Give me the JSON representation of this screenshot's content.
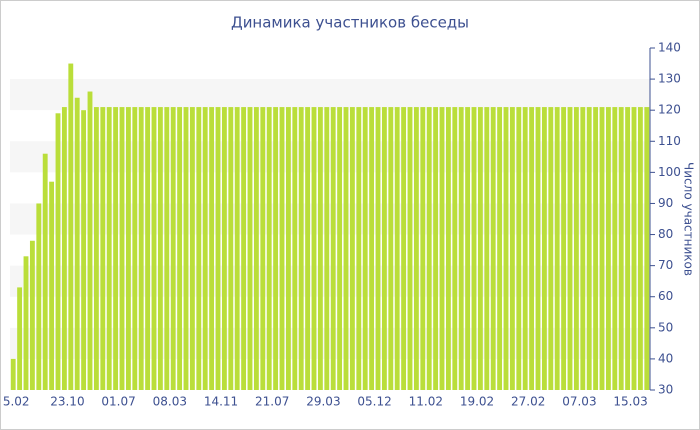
{
  "chart_data": {
    "type": "bar",
    "title": "Динамика участников беседы",
    "y_axis_label": "Число участников",
    "categories": [
      "5.02",
      null,
      null,
      null,
      null,
      null,
      null,
      null,
      "23.10",
      null,
      null,
      null,
      null,
      null,
      null,
      null,
      "01.07",
      null,
      null,
      null,
      null,
      null,
      null,
      null,
      "08.03",
      null,
      null,
      null,
      null,
      null,
      null,
      null,
      "14.11",
      null,
      null,
      null,
      null,
      null,
      null,
      null,
      "21.07",
      null,
      null,
      null,
      null,
      null,
      null,
      null,
      "29.03",
      null,
      null,
      null,
      null,
      null,
      null,
      null,
      "05.12",
      null,
      null,
      null,
      null,
      null,
      null,
      null,
      "11.02",
      null,
      null,
      null,
      null,
      null,
      null,
      null,
      "19.02",
      null,
      null,
      null,
      null,
      null,
      null,
      null,
      "27.02",
      null,
      null,
      null,
      null,
      null,
      null,
      null,
      "07.03",
      null,
      null,
      null,
      null,
      null,
      null,
      null,
      "15.03",
      null,
      null,
      null
    ],
    "values": [
      40,
      63,
      73,
      78,
      90,
      106,
      97,
      119,
      121,
      135,
      124,
      120,
      126,
      121,
      121,
      121,
      121,
      121,
      121,
      121,
      121,
      121,
      121,
      121,
      121,
      121,
      121,
      121,
      121,
      121,
      121,
      121,
      121,
      121,
      121,
      121,
      121,
      121,
      121,
      121,
      121,
      121,
      121,
      121,
      121,
      121,
      121,
      121,
      121,
      121,
      121,
      121,
      121,
      121,
      121,
      121,
      121,
      121,
      121,
      121,
      121,
      121,
      121,
      121,
      121,
      121,
      121,
      121,
      121,
      121,
      121,
      121,
      121,
      121,
      121,
      121,
      121,
      121,
      121,
      121,
      121,
      121,
      121,
      121,
      121,
      121,
      121,
      121,
      121,
      121,
      121,
      121,
      121,
      121,
      121,
      121,
      121,
      121,
      121,
      121
    ],
    "color": "#bade3a",
    "ylim": [
      30,
      140
    ],
    "yticks": [
      30,
      40,
      50,
      60,
      70,
      80,
      90,
      100,
      110,
      120,
      130,
      140
    ],
    "grid": true
  }
}
